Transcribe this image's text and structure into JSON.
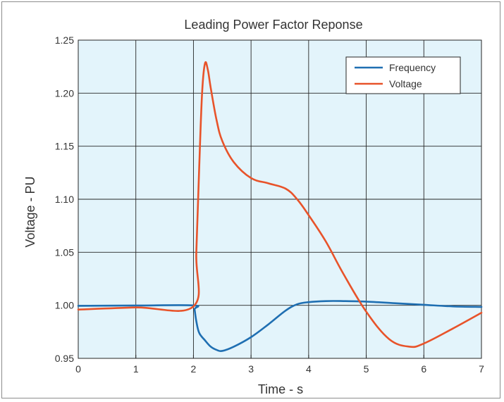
{
  "chart_data": {
    "type": "line",
    "title": "Leading Power Factor Reponse",
    "xlabel": "Time - s",
    "ylabel": "Voltage - PU",
    "xlim": [
      0,
      7
    ],
    "ylim": [
      0.95,
      1.25
    ],
    "xticks": [
      "0",
      "1",
      "2",
      "3",
      "4",
      "5",
      "6",
      "7"
    ],
    "yticks": [
      "0.95",
      "1.00",
      "1.05",
      "1.10",
      "1.15",
      "1.20",
      "1.25"
    ],
    "grid": true,
    "legend_position": "top-right",
    "background": "#e3f4fb",
    "series": [
      {
        "name": "Frequency",
        "color": "#1f6fb2",
        "points": [
          [
            0,
            0.9995
          ],
          [
            1,
            0.9998
          ],
          [
            2,
            0.9999
          ],
          [
            2.02,
            0.996
          ],
          [
            2.05,
            0.985
          ],
          [
            2.1,
            0.974
          ],
          [
            2.2,
            0.967
          ],
          [
            2.3,
            0.961
          ],
          [
            2.4,
            0.958
          ],
          [
            2.5,
            0.957
          ],
          [
            2.7,
            0.961
          ],
          [
            3,
            0.97
          ],
          [
            3.3,
            0.982
          ],
          [
            3.6,
            0.995
          ],
          [
            3.8,
            1.001
          ],
          [
            4,
            1.003
          ],
          [
            4.3,
            1.004
          ],
          [
            4.6,
            1.004
          ],
          [
            5,
            1.0035
          ],
          [
            5.5,
            1.002
          ],
          [
            6,
            1.0005
          ],
          [
            6.5,
            0.999
          ],
          [
            7,
            0.9985
          ]
        ]
      },
      {
        "name": "Voltage",
        "color": "#e8532a",
        "points": [
          [
            0,
            0.996
          ],
          [
            1,
            0.998
          ],
          [
            2,
            0.999
          ],
          [
            2.05,
            1.05
          ],
          [
            2.1,
            1.13
          ],
          [
            2.15,
            1.2
          ],
          [
            2.2,
            1.228
          ],
          [
            2.25,
            1.222
          ],
          [
            2.3,
            1.205
          ],
          [
            2.4,
            1.175
          ],
          [
            2.5,
            1.155
          ],
          [
            2.7,
            1.135
          ],
          [
            3,
            1.12
          ],
          [
            3.3,
            1.115
          ],
          [
            3.6,
            1.11
          ],
          [
            3.8,
            1.1
          ],
          [
            4,
            1.085
          ],
          [
            4.3,
            1.06
          ],
          [
            4.6,
            1.03
          ],
          [
            5,
            0.994
          ],
          [
            5.4,
            0.968
          ],
          [
            5.75,
            0.961
          ],
          [
            6,
            0.964
          ],
          [
            6.5,
            0.978
          ],
          [
            7,
            0.993
          ]
        ]
      }
    ]
  }
}
